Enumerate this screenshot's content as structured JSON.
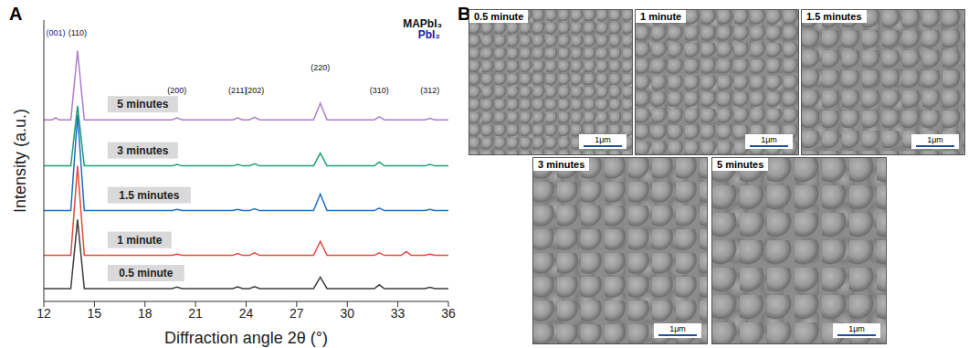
{
  "chart_data": {
    "type": "line",
    "title": "A",
    "x_label": "Diffraction angle 2θ (°)",
    "y_label": "Intensity (a.u.)",
    "x": [
      12,
      12.5,
      12.7,
      12.9,
      13.6,
      14.0,
      14.4,
      16,
      19.6,
      19.9,
      20.2,
      23.2,
      23.5,
      23.8,
      24.2,
      24.5,
      24.8,
      28.0,
      28.4,
      28.8,
      31.6,
      31.9,
      32.2,
      33.2,
      33.5,
      33.8,
      34.6,
      34.9,
      35.2,
      36
    ],
    "series": [
      {
        "name": "0.5 minute",
        "color": "#3d3d3d",
        "values": [
          5,
          5,
          5,
          5,
          5,
          32,
          5,
          5,
          5,
          5.6,
          5,
          5,
          5.7,
          5,
          5,
          5.8,
          5,
          5,
          9.5,
          5,
          5,
          6.5,
          5,
          5,
          5,
          5,
          5,
          5.5,
          5,
          5
        ]
      },
      {
        "name": "1 minute",
        "color": "#e8473f",
        "values": [
          18,
          18,
          18,
          18,
          18,
          53,
          18,
          18,
          18,
          18.5,
          18,
          18,
          18.7,
          18,
          18,
          19,
          18,
          18,
          23.5,
          18,
          18,
          19,
          18,
          18,
          19.5,
          18,
          18,
          18.5,
          18,
          18
        ]
      },
      {
        "name": "1.5 minutes",
        "color": "#1f6fbf",
        "values": [
          35.5,
          35.5,
          35.5,
          35.5,
          35.5,
          73,
          35.5,
          35.5,
          35.5,
          36,
          35.5,
          35.5,
          36,
          35.5,
          35.5,
          36.2,
          35.5,
          35.5,
          42,
          35.5,
          35.5,
          36.5,
          35.5,
          35.5,
          35.5,
          35.5,
          35.5,
          36,
          35.5,
          35.5
        ]
      },
      {
        "name": "3 minutes",
        "color": "#1a9e77",
        "values": [
          53,
          53,
          53,
          53,
          53,
          76.5,
          53,
          53,
          53,
          53.6,
          53,
          53,
          53.6,
          53,
          53,
          53.8,
          53,
          53,
          58,
          53,
          53,
          54.5,
          53,
          53,
          53,
          53,
          53,
          53.6,
          53,
          53
        ]
      },
      {
        "name": "5 minutes",
        "color": "#b07ccc",
        "values": [
          71,
          71,
          71.8,
          71,
          71,
          98,
          71,
          71,
          71,
          71.8,
          71,
          71,
          71.8,
          71,
          71,
          72,
          71,
          71,
          77.5,
          71,
          71,
          72.2,
          71,
          71,
          71,
          71,
          71,
          71.6,
          71,
          71
        ]
      }
    ],
    "xlim": [
      12,
      36
    ],
    "xticks": [
      12,
      15,
      18,
      21,
      24,
      27,
      30,
      33,
      36
    ],
    "ylim": [
      0,
      110
    ],
    "tick_labels": "x",
    "annotations": [
      {
        "text": "(001)",
        "x": 12.7,
        "y": 104,
        "color": "#1a1aa0"
      },
      {
        "text": "(110)",
        "x": 14.0,
        "y": 104,
        "color": "#111111"
      },
      {
        "text": "(200)",
        "x": 19.9,
        "y": 81.6,
        "color": "#111111"
      },
      {
        "text": "(211)",
        "x": 23.5,
        "y": 81.6,
        "color": "#111111"
      },
      {
        "text": "(202)",
        "x": 24.5,
        "y": 81.6,
        "color": "#111111"
      },
      {
        "text": "(220)",
        "x": 28.4,
        "y": 90.5,
        "color": "#111111"
      },
      {
        "text": "(310)",
        "x": 31.9,
        "y": 81.6,
        "color": "#111111"
      },
      {
        "text": "(312)",
        "x": 34.9,
        "y": 81.6,
        "color": "#111111"
      },
      {
        "text": "MAPbI₃",
        "x": 33.3,
        "y": 107,
        "color": "#111111"
      },
      {
        "text": "PbI₂",
        "x": 34.2,
        "y": 103,
        "color": "#1a1aa0"
      }
    ]
  },
  "images": {
    "title": "B",
    "items": [
      {
        "label": "0.5 minute",
        "scale_bar": "1μm"
      },
      {
        "label": "1 minute",
        "scale_bar": "1μm"
      },
      {
        "label": "1.5 minutes",
        "scale_bar": "1μm"
      },
      {
        "label": "3 minutes",
        "scale_bar": "1μm"
      },
      {
        "label": "5 minutes",
        "scale_bar": "1μm"
      }
    ]
  }
}
